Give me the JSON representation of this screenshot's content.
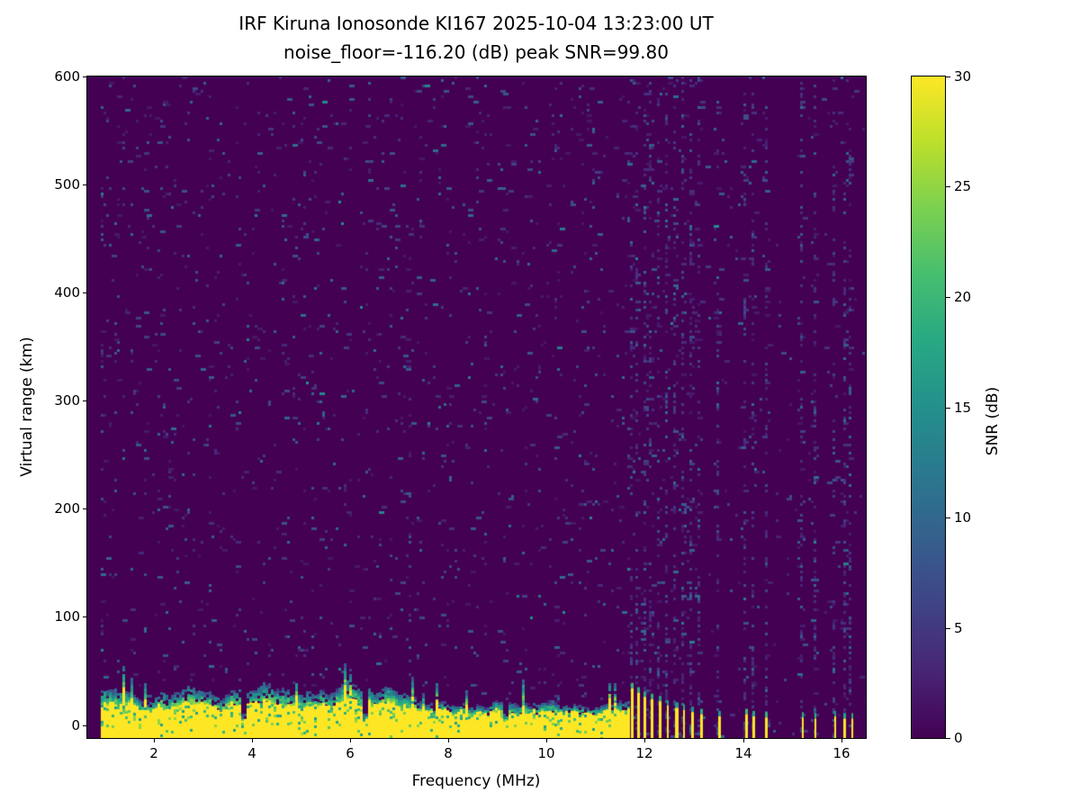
{
  "chart_data": {
    "type": "heatmap",
    "title": "IRF Kiruna Ionosonde KI167 2025-10-04 13:23:00  UT",
    "subtitle": "noise_floor=-116.20 (dB) peak SNR=99.80",
    "xlabel": "Frequency (MHz)",
    "ylabel": "Virtual range (km)",
    "x_range": [
      0.65,
      16.5
    ],
    "y_range": [
      -12,
      600
    ],
    "x_ticks": [
      2,
      4,
      6,
      8,
      10,
      12,
      14,
      16
    ],
    "y_ticks": [
      0,
      100,
      200,
      300,
      400,
      500,
      600
    ],
    "noise_floor_db": -116.2,
    "peak_snr_db": 99.8,
    "colorbar": {
      "label": "SNR (dB)",
      "range": [
        0,
        30
      ],
      "ticks": [
        0,
        5,
        10,
        15,
        20,
        25,
        30
      ],
      "colormap": "viridis",
      "color_low": "#440154",
      "color_high": "#fde725"
    },
    "ground_band": {
      "freq_start": 0.95,
      "freq_end": 11.68,
      "yellow_top_km_typical": 18,
      "fringe_top_km_typical": 28,
      "notches_mhz": [
        3.85,
        6.3,
        9.15
      ]
    },
    "rf_stripes_mhz": [
      11.72,
      11.85,
      11.98,
      12.12,
      12.28,
      12.45,
      12.62,
      12.78,
      12.95,
      13.12,
      13.5,
      14.05,
      14.2,
      14.45,
      15.2,
      15.45,
      15.85,
      16.05,
      16.2
    ],
    "rf_stripe_heights_km": [
      34,
      30,
      26,
      24,
      22,
      18,
      16,
      14,
      12,
      10,
      8,
      10,
      8,
      7,
      7,
      6,
      8,
      6,
      6
    ],
    "background_speckle_snr_db_max": 12
  }
}
